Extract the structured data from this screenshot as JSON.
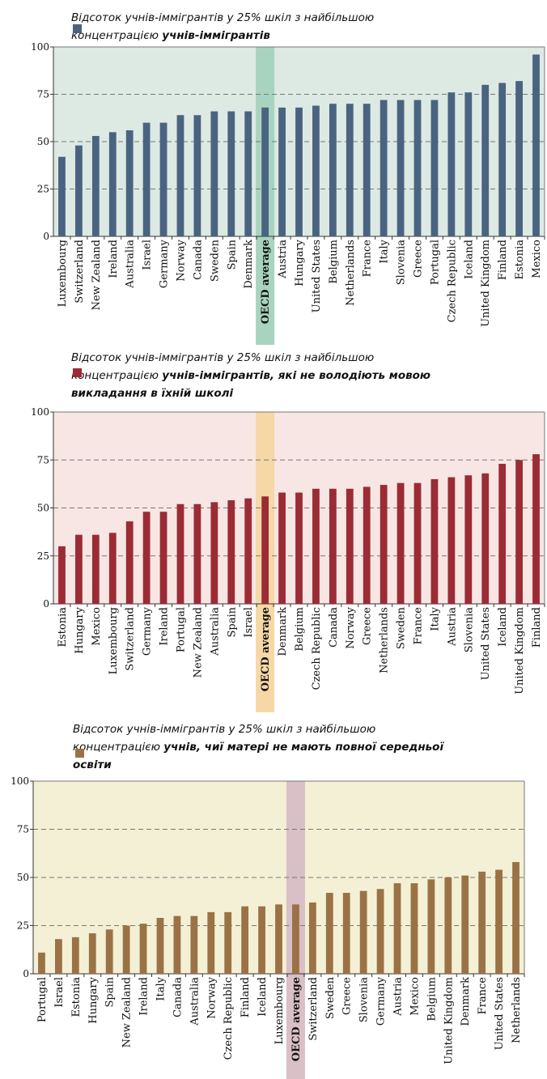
{
  "chart_data": [
    {
      "type": "bar",
      "legend_title": "Відсоток учнів-іммігрантів у 25% шкіл з найбільшою",
      "legend_lines": [
        {
          "plain": "концентрацією  ",
          "bold": "учнів-іммігрантів"
        }
      ],
      "colors": {
        "bar": "#4a6380",
        "bg": "#dde9e3",
        "highlight": "#a8d4bf"
      },
      "highlight_category": "OECD average",
      "ylim": [
        0,
        100
      ],
      "yticks": [
        0,
        25,
        50,
        75,
        100
      ],
      "grid": "dashed at 75",
      "categories": [
        "Luxembourg",
        "Switzerland",
        "New Zealand",
        "Ireland",
        "Australia",
        "Israel",
        "Germany",
        "Norway",
        "Canada",
        "Sweden",
        "Spain",
        "Denmark",
        "OECD average",
        "Austria",
        "Hungary",
        "United States",
        "Belgium",
        "Netherlands",
        "France",
        "Italy",
        "Slovenia",
        "Greece",
        "Portugal",
        "Czech Republic",
        "Iceland",
        "United Kingdom",
        "Finland",
        "Estonia",
        "Mexico"
      ],
      "values": [
        42,
        48,
        53,
        55,
        56,
        60,
        60,
        64,
        64,
        66,
        66,
        66,
        68,
        68,
        68,
        69,
        70,
        70,
        70,
        72,
        72,
        72,
        72,
        76,
        76,
        80,
        81,
        82,
        96
      ]
    },
    {
      "type": "bar",
      "legend_title": "Відсоток учнів-іммігрантів у 25% шкіл з найбільшою",
      "legend_lines": [
        {
          "plain": "концентрацією ",
          "bold": "учнів-іммігрантів, які не володіють мовою"
        },
        {
          "plain": "",
          "bold": "викладання в їхній школі"
        }
      ],
      "colors": {
        "bar": "#9b2b35",
        "bg": "#f7e6e3",
        "highlight": "#f6d8a6"
      },
      "highlight_category": "OECD average",
      "ylim": [
        0,
        100
      ],
      "yticks": [
        0,
        25,
        50,
        75,
        100
      ],
      "grid": "dashed at 50, 75",
      "categories": [
        "Estonia",
        "Hungary",
        "Mexico",
        "Luxembourg",
        "Switzerland",
        "Germany",
        "Ireland",
        "Portugal",
        "New Zealand",
        "Australia",
        "Spain",
        "Israel",
        "OECD average",
        "Denmark",
        "Belgium",
        "Czech Republic",
        "Canada",
        "Norway",
        "Greece",
        "Netherlands",
        "Sweden",
        "France",
        "Italy",
        "Austria",
        "Slovenia",
        "United States",
        "Iceland",
        "United Kingdom",
        "Finland"
      ],
      "values": [
        30,
        36,
        36,
        37,
        43,
        48,
        48,
        52,
        52,
        53,
        54,
        55,
        56,
        58,
        58,
        60,
        60,
        60,
        61,
        62,
        63,
        63,
        65,
        66,
        67,
        68,
        73,
        75,
        78
      ]
    },
    {
      "type": "bar",
      "legend_title": "Відсоток учнів-іммігрантів у 25% шкіл з найбільшою",
      "legend_lines": [
        {
          "plain": "концентрацією ",
          "bold": "учнів, чиї матері не мають повної середньої"
        },
        {
          "plain": "",
          "bold": "освіти"
        }
      ],
      "colors": {
        "bar": "#9b7245",
        "bg": "#f3f0d5",
        "highlight": "#d9bfc6"
      },
      "highlight_category": "OECD average",
      "ylim": [
        0,
        100
      ],
      "yticks": [
        0,
        25,
        50,
        75,
        100
      ],
      "grid": "dashed at 25, 50, 75",
      "categories": [
        "Portugal",
        "Israel",
        "Estonia",
        "Hungary",
        "Spain",
        "New Zealand",
        "Ireland",
        "Italy",
        "Canada",
        "Australia",
        "Norway",
        "Czech Republic",
        "Finland",
        "Iceland",
        "Luxembourg",
        "OECD average",
        "Switzerland",
        "Sweden",
        "Greece",
        "Slovenia",
        "Germany",
        "Austria",
        "Mexico",
        "Belgium",
        "United Kingdom",
        "Denmark",
        "France",
        "United States",
        "Netherlands"
      ],
      "values": [
        11,
        18,
        19,
        21,
        23,
        25,
        26,
        29,
        30,
        30,
        32,
        32,
        35,
        35,
        36,
        36,
        37,
        42,
        42,
        43,
        44,
        47,
        47,
        49,
        50,
        51,
        53,
        54,
        58
      ]
    }
  ]
}
